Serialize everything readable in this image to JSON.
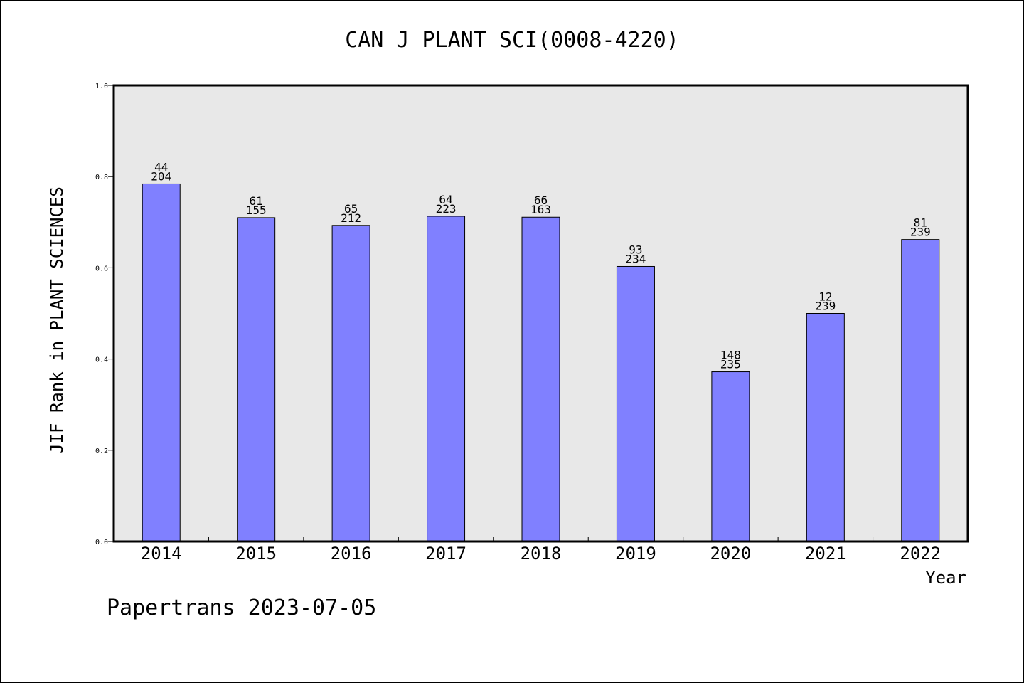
{
  "chart_data": {
    "type": "bar",
    "title": "CAN J PLANT SCI(0008-4220)",
    "xlabel": "Year",
    "ylabel": "JIF Rank in PLANT SCIENCES",
    "ylim": [
      0,
      1.0
    ],
    "yticks": [
      "0.0",
      "0.2",
      "0.4",
      "0.6",
      "0.8",
      "1.0"
    ],
    "grid": false,
    "categories": [
      "2014",
      "2015",
      "2016",
      "2017",
      "2018",
      "2019",
      "2020",
      "2021",
      "2022"
    ],
    "values": [
      0.784,
      0.71,
      0.693,
      0.713,
      0.711,
      0.603,
      0.372,
      0.5,
      0.662
    ],
    "rank": [
      "44",
      "61",
      "65",
      "64",
      "66",
      "93",
      "148",
      "12",
      "81"
    ],
    "total": [
      "204",
      "155",
      "212",
      "223",
      "163",
      "234",
      "235",
      "239",
      "239"
    ],
    "colors": {
      "bar": "#8080ff",
      "plot_bg": "#e8e8e8",
      "axis": "#000000"
    }
  },
  "footer": "Papertrans 2023-07-05"
}
